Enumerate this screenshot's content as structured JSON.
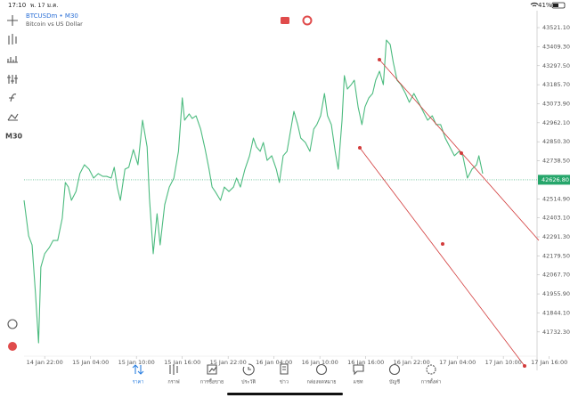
{
  "status_bar": {
    "time": "17:10",
    "date": "พ. 17 ม.ค.",
    "battery": "41%"
  },
  "toolbar": {
    "timeframe": "M30"
  },
  "chart_data": {
    "type": "line",
    "title": "BTCUSDm • M30",
    "subtitle": "Bitcoin vs US Dollar",
    "color": "#4cbb7f",
    "x": [
      19.3,
      19.9,
      20.35,
      20.8,
      21.2,
      21.5,
      22.0,
      22.6,
      23.1,
      23.7,
      24.3,
      24.7,
      25.1,
      25.5,
      26.1,
      26.6,
      27.2,
      27.8,
      28.4,
      29.0,
      29.6,
      30.1,
      30.7,
      31.1,
      31.5,
      31.9,
      32.5,
      33.0,
      33.6,
      34.2,
      34.8,
      35.4,
      35.7,
      36.2,
      36.7,
      37.1,
      37.7,
      38.3,
      38.9,
      39.5,
      40.0,
      40.3,
      40.9,
      41.3,
      41.8,
      42.4,
      43.0,
      43.5,
      43.9,
      44.3,
      45.0,
      45.5,
      46.1,
      46.7,
      47.1,
      47.6,
      48.2,
      48.8,
      49.3,
      49.7,
      50.2,
      50.6,
      51.1,
      51.7,
      52.3,
      52.7,
      53.2,
      53.7,
      54.1,
      54.6,
      55.1,
      55.5,
      56.1,
      56.7,
      57.2,
      57.6,
      58.1,
      58.6,
      59.0,
      59.5,
      60.0,
      60.4,
      60.9,
      61.2,
      61.6,
      62.1,
      62.5,
      63.0,
      63.5,
      63.9,
      64.4,
      64.9,
      65.3,
      65.8,
      66.3,
      66.7,
      67.2,
      67.6,
      68.1,
      68.6,
      69.2,
      69.7,
      70.3,
      70.9,
      71.5,
      72.1,
      72.7,
      73.2,
      73.8,
      74.4,
      75.0,
      75.6,
      76.2,
      76.7,
      77.3,
      77.9,
      78.5,
      78.8,
      79.3
    ],
    "values": [
      42506,
      42297,
      42244,
      41956,
      41668,
      42113,
      42192,
      42228,
      42270,
      42270,
      42401,
      42611,
      42584,
      42506,
      42558,
      42663,
      42715,
      42689,
      42637,
      42663,
      42647,
      42647,
      42637,
      42700,
      42584,
      42506,
      42689,
      42700,
      42804,
      42715,
      42977,
      42820,
      42522,
      42192,
      42427,
      42244,
      42480,
      42584,
      42637,
      42794,
      43108,
      42977,
      43014,
      42987,
      43003,
      42925,
      42804,
      42689,
      42584,
      42558,
      42506,
      42584,
      42558,
      42584,
      42637,
      42584,
      42689,
      42768,
      42872,
      42820,
      42794,
      42846,
      42741,
      42768,
      42689,
      42611,
      42768,
      42794,
      42898,
      43029,
      42951,
      42872,
      42846,
      42794,
      42925,
      42951,
      43003,
      43134,
      43003,
      42951,
      42794,
      42689,
      42977,
      43239,
      43160,
      43186,
      43212,
      43055,
      42951,
      43055,
      43108,
      43134,
      43212,
      43265,
      43186,
      43448,
      43422,
      43317,
      43212,
      43186,
      43134,
      43082,
      43134,
      43082,
      43029,
      42977,
      43003,
      42951,
      42951,
      42872,
      42820,
      42768,
      42794,
      42768,
      42637,
      42689,
      42715,
      42768,
      42663
    ],
    "xlim": [
      19.3,
      88
    ],
    "ylim": [
      41590,
      43537
    ],
    "xticks": [
      {
        "value": 22,
        "label": "14 Jan 22:00"
      },
      {
        "value": 28,
        "label": "15 Jan 04:00"
      },
      {
        "value": 34,
        "label": "15 Jan 10:00"
      },
      {
        "value": 40,
        "label": "15 Jan 16:00"
      },
      {
        "value": 46,
        "label": "15 Jan 22:00"
      },
      {
        "value": 52,
        "label": "16 Jan 04:00"
      },
      {
        "value": 58,
        "label": "16 Jan 10:00"
      },
      {
        "value": 64,
        "label": "16 Jan 16:00"
      },
      {
        "value": 70,
        "label": "16 Jan 22:00"
      },
      {
        "value": 76,
        "label": "17 Jan 04:00"
      },
      {
        "value": 82,
        "label": "17 Jan 10:00"
      },
      {
        "value": 88,
        "label": "17 Jan 16:00"
      }
    ],
    "yticks": [
      {
        "value": 43521.1,
        "label": "43521.10"
      },
      {
        "value": 43409.3,
        "label": "43409.30"
      },
      {
        "value": 43297.5,
        "label": "43297.50"
      },
      {
        "value": 43185.7,
        "label": "43185.70"
      },
      {
        "value": 43073.9,
        "label": "43073.90"
      },
      {
        "value": 42962.1,
        "label": "42962.10"
      },
      {
        "value": 42850.3,
        "label": "42850.30"
      },
      {
        "value": 42738.5,
        "label": "42738.50"
      },
      {
        "value": 42514.9,
        "label": "42514.90"
      },
      {
        "value": 42403.1,
        "label": "42403.10"
      },
      {
        "value": 42291.3,
        "label": "42291.30"
      },
      {
        "value": 42179.5,
        "label": "42179.50"
      },
      {
        "value": 42067.7,
        "label": "42067.70"
      },
      {
        "value": 41955.9,
        "label": "41955.90"
      },
      {
        "value": 41844.1,
        "label": "41844.10"
      },
      {
        "value": 41732.3,
        "label": "41732.30"
      }
    ],
    "current_price": {
      "value": 42626.8,
      "label": "42626.80"
    },
    "current_price_color": "#26a66b"
  },
  "nav": [
    "ราคา",
    "กราฟ",
    "การซื้อขาย",
    "ประวัติ",
    "ข่าว",
    "กล่องจดหมาย",
    "แชท",
    "บัญชี",
    "การตั้งค่า"
  ]
}
